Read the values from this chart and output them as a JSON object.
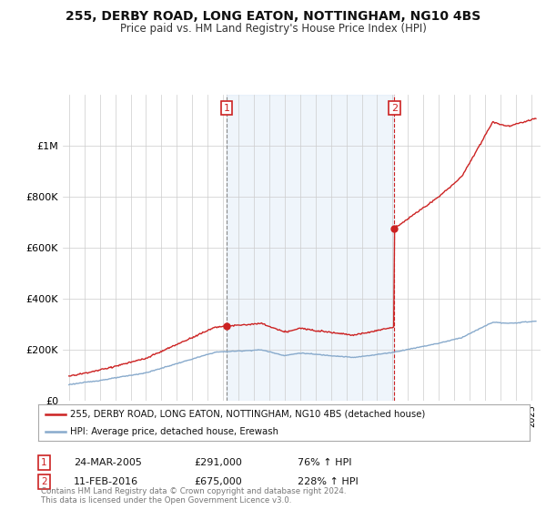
{
  "title": "255, DERBY ROAD, LONG EATON, NOTTINGHAM, NG10 4BS",
  "subtitle": "Price paid vs. HM Land Registry's House Price Index (HPI)",
  "legend_line1": "255, DERBY ROAD, LONG EATON, NOTTINGHAM, NG10 4BS (detached house)",
  "legend_line2": "HPI: Average price, detached house, Erewash",
  "footnote": "Contains HM Land Registry data © Crown copyright and database right 2024.\nThis data is licensed under the Open Government Licence v3.0.",
  "sale1_date": "24-MAR-2005",
  "sale1_price": "£291,000",
  "sale1_hpi": "76% ↑ HPI",
  "sale2_date": "11-FEB-2016",
  "sale2_price": "£675,000",
  "sale2_hpi": "228% ↑ HPI",
  "red_color": "#cc2222",
  "blue_color": "#88aacc",
  "shade_color": "#ddeeff",
  "bg_color": "#ffffff",
  "ylim_max": 1200000,
  "yticks": [
    0,
    200000,
    400000,
    600000,
    800000,
    1000000
  ],
  "ytick_labels": [
    "£0",
    "£200K",
    "£400K",
    "£600K",
    "£800K",
    "£1M"
  ],
  "sale1_year": 2005.23,
  "sale2_year": 2016.12
}
